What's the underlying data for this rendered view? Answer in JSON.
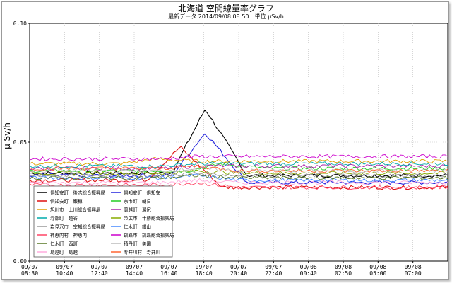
{
  "title": "北海道 空間線量率グラフ",
  "subtitle": "最新データ:2014/09/08 08:50　単位:μSv/h",
  "chart_data": {
    "type": "line",
    "ylabel": "μ Sv/h",
    "ylim": [
      0.0,
      0.1
    ],
    "yticks": [
      "0.00",
      "0.05",
      "0.10"
    ],
    "ytick_values": [
      0.0,
      0.05,
      0.1
    ],
    "xlim": [
      0,
      100
    ],
    "x_tick_positions": [
      0,
      8.33,
      16.67,
      25,
      33.33,
      41.67,
      50,
      58.33,
      66.67,
      75,
      83.33,
      91.67
    ],
    "x_tick_labels": [
      [
        "09/07",
        "08:30"
      ],
      [
        "09/07",
        "10:40"
      ],
      [
        "09/07",
        "12:40"
      ],
      [
        "09/07",
        "14:40"
      ],
      [
        "09/07",
        "16:40"
      ],
      [
        "09/07",
        "18:40"
      ],
      [
        "09/07",
        "20:40"
      ],
      [
        "09/07",
        "22:40"
      ],
      [
        "09/08",
        "00:40"
      ],
      [
        "09/08",
        "02:50"
      ],
      [
        "09/08",
        "05:00"
      ],
      [
        "09/08",
        "07:00"
      ]
    ],
    "grid": true,
    "legend_placement": "bottom-left",
    "series": [
      {
        "name": "倶知安町　後志総合振興局",
        "color": "#000000",
        "base": 0.037,
        "peak": 0.064,
        "peak_at": 42,
        "after": 0.036
      },
      {
        "name": "倶知安町　倶知安",
        "color": "#2222dd",
        "base": 0.036,
        "peak": 0.054,
        "peak_at": 42,
        "after": 0.033
      },
      {
        "name": "倶知安町　巌穂",
        "color": "#dd1111",
        "base": 0.034,
        "peak": 0.048,
        "peak_at": 36,
        "after": 0.031
      },
      {
        "name": "余市町　朝日",
        "color": "#22cc22",
        "base": 0.038,
        "peak": 0.041,
        "peak_at": 46,
        "after": 0.039
      },
      {
        "name": "旭川市　上川総合振興局",
        "color": "#e0a000",
        "base": 0.041,
        "peak": 0.043,
        "peak_at": 30,
        "after": 0.042
      },
      {
        "name": "蘭越町　湯尻",
        "color": "#aa22aa",
        "base": 0.039,
        "peak": 0.04,
        "peak_at": 40,
        "after": 0.04
      },
      {
        "name": "寿都町　越谷",
        "color": "#00aaaa",
        "base": 0.04,
        "peak": 0.041,
        "peak_at": 40,
        "after": 0.041
      },
      {
        "name": "帯広市　十勝総合振興局",
        "color": "#88aa00",
        "base": 0.037,
        "peak": 0.038,
        "peak_at": 40,
        "after": 0.037
      },
      {
        "name": "岩見沢市　空知総合振興局",
        "color": "#999999",
        "base": 0.036,
        "peak": 0.037,
        "peak_at": 40,
        "after": 0.036
      },
      {
        "name": "仁木町　銀山",
        "color": "#4488ff",
        "base": 0.035,
        "peak": 0.036,
        "peak_at": 40,
        "after": 0.034
      },
      {
        "name": "神恵内村　神恵内",
        "color": "#ff4466",
        "base": 0.032,
        "peak": 0.033,
        "peak_at": 40,
        "after": 0.031
      },
      {
        "name": "釧路市　釧路総合振興局",
        "color": "#cc00cc",
        "base": 0.043,
        "peak": 0.044,
        "peak_at": 40,
        "after": 0.044
      },
      {
        "name": "仁木町　西町",
        "color": "#557722",
        "base": 0.035,
        "peak": 0.036,
        "peak_at": 40,
        "after": 0.035
      },
      {
        "name": "積丹町　美国",
        "color": "#bbbbbb",
        "base": 0.038,
        "peak": 0.039,
        "peak_at": 40,
        "after": 0.038
      },
      {
        "name": "島越町　島越",
        "color": "#ffaadd",
        "base": 0.033,
        "peak": 0.034,
        "peak_at": 40,
        "after": 0.033
      },
      {
        "name": "寿井川村　寿井川",
        "color": "#ff6633",
        "base": 0.039,
        "peak": 0.04,
        "peak_at": 40,
        "after": 0.038
      }
    ]
  }
}
